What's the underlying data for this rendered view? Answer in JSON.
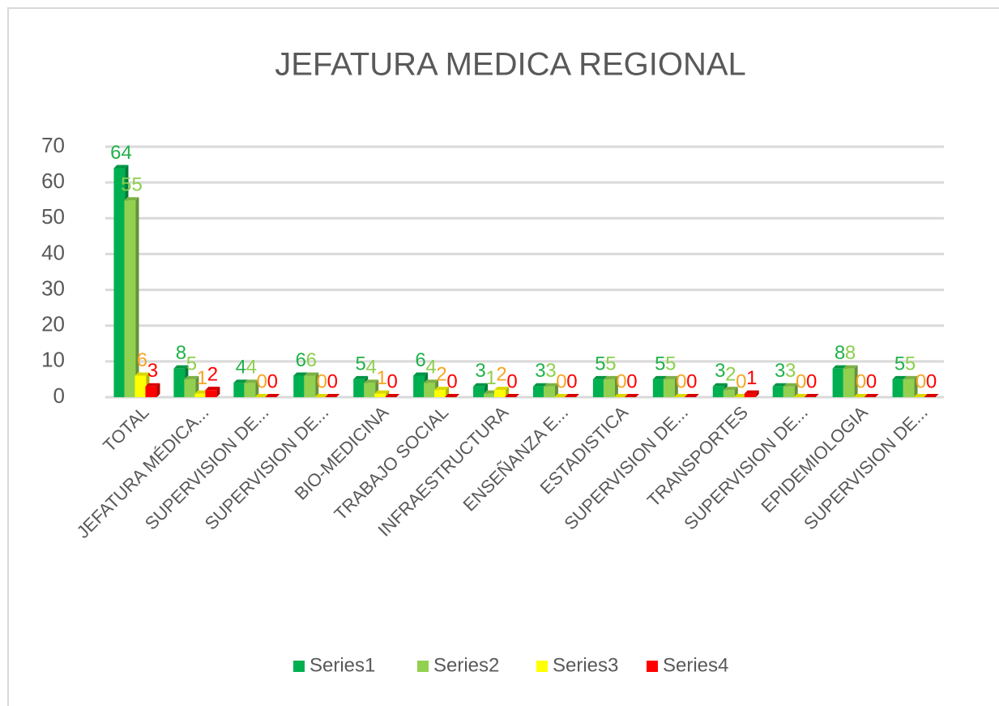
{
  "chart_data": {
    "type": "bar",
    "title": "JEFATURA MEDICA REGIONAL",
    "categories": [
      "TOTAL",
      "JEFATURA MÉDICA...",
      "SUPERVISION DE...",
      "SUPERVISION DE...",
      "BIO-MEDICINA",
      "TRABAJO SOCIAL",
      "INFRAESTRUCTURA",
      "ENSEÑANZA E...",
      "ESTADISTICA",
      "SUPERVISION DE...",
      "TRANSPORTES",
      "SUPERVISION DE...",
      "EPIDEMIOLOGIA",
      "SUPERVISION DE..."
    ],
    "series": [
      {
        "name": "Series1",
        "color": "#00b050",
        "label_color": "#21b14b",
        "values": [
          64,
          8,
          4,
          6,
          5,
          6,
          3,
          3,
          5,
          5,
          3,
          3,
          8,
          5
        ]
      },
      {
        "name": "Series2",
        "color": "#92d050",
        "label_color": "#8ccf4d",
        "values": [
          55,
          5,
          4,
          6,
          4,
          4,
          1,
          3,
          5,
          5,
          2,
          3,
          8,
          5
        ]
      },
      {
        "name": "Series3",
        "color": "#ffff00",
        "label_color": "#f5a623",
        "values": [
          6,
          1,
          0,
          0,
          1,
          2,
          2,
          0,
          0,
          0,
          0,
          0,
          0,
          0
        ]
      },
      {
        "name": "Series4",
        "color": "#ff0000",
        "label_color": "#ff0000",
        "values": [
          3,
          2,
          0,
          0,
          0,
          0,
          0,
          0,
          0,
          0,
          1,
          0,
          0,
          0
        ]
      }
    ],
    "ylim": [
      0,
      70
    ],
    "yticks": [
      0,
      10,
      20,
      30,
      40,
      50,
      60,
      70
    ],
    "grid": true,
    "legend": "bottom"
  }
}
